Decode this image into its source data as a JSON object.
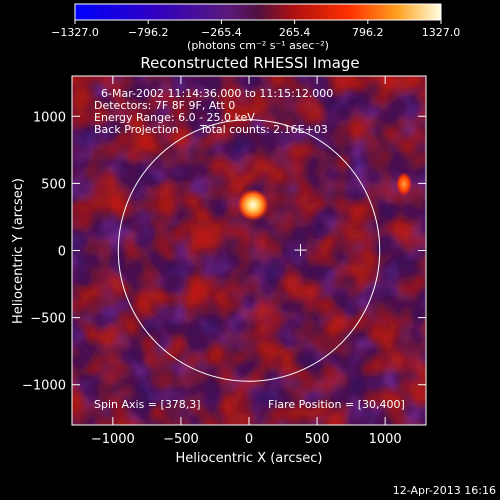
{
  "chart_data": {
    "type": "heatmap",
    "title": "Reconstructed RHESSI Image",
    "xlabel": "Heliocentric X (arcsec)",
    "ylabel": "Heliocentric Y (arcsec)",
    "xlim": [
      -1300,
      1300
    ],
    "ylim": [
      -1300,
      1300
    ],
    "xticks": [
      -1000,
      -500,
      0,
      500,
      1000
    ],
    "yticks": [
      -1000,
      -500,
      0,
      500,
      1000
    ],
    "xtick_labels": [
      "−1000",
      "−500",
      "0",
      "500",
      "1000"
    ],
    "ytick_labels": [
      "−1000",
      "−500",
      "0",
      "500",
      "1000"
    ],
    "colorbar": {
      "ticks": [
        -1327.0,
        -796.2,
        -265.4,
        265.4,
        796.2,
        1327.0
      ],
      "tick_labels": [
        "−1327.0",
        "−796.2",
        "−265.4",
        "265.4",
        "796.2",
        "1327.0"
      ],
      "unit_label": "(photons cm⁻² s⁻¹ asec⁻²)",
      "min": -1327.0,
      "max": 1327.0
    },
    "annotations": {
      "time": "6-Mar-2002 11:14:36.000 to 11:15:12.000",
      "detectors": "Detectors: 7F 8F 9F, Att 0",
      "energy": "Energy Range: 6.0 - 25.0 keV",
      "method": "Back Projection",
      "counts": "Total counts: 2.16E+03",
      "spin_axis": "Spin Axis = [378,3]",
      "flare_position": "Flare Position = [30,400]"
    },
    "solar_disk": {
      "center": [
        0,
        0
      ],
      "radius_arcsec": 960
    },
    "spin_axis_marker": [
      378,
      3
    ],
    "source_peak": {
      "x": 30,
      "y": 400,
      "value": 1327.0
    },
    "grid": false
  },
  "footer": {
    "date": "12-Apr-2013 16:16"
  }
}
